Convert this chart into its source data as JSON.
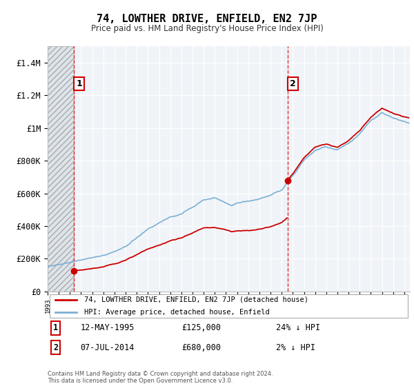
{
  "title": "74, LOWTHER DRIVE, ENFIELD, EN2 7JP",
  "subtitle": "Price paid vs. HM Land Registry's House Price Index (HPI)",
  "ylim": [
    0,
    1500000
  ],
  "yticks": [
    0,
    200000,
    400000,
    600000,
    800000,
    1000000,
    1200000,
    1400000
  ],
  "ytick_labels": [
    "£0",
    "£200K",
    "£400K",
    "£600K",
    "£800K",
    "£1M",
    "£1.2M",
    "£1.4M"
  ],
  "sale1_date": "12-MAY-1995",
  "sale1_price": 125000,
  "sale1_year": 1995.36,
  "sale1_pct": "24%",
  "sale2_date": "07-JUL-2014",
  "sale2_price": 680000,
  "sale2_year": 2014.52,
  "sale2_pct": "2%",
  "legend_line1": "74, LOWTHER DRIVE, ENFIELD, EN2 7JP (detached house)",
  "legend_line2": "HPI: Average price, detached house, Enfield",
  "footer": "Contains HM Land Registry data © Crown copyright and database right 2024.\nThis data is licensed under the Open Government Licence v3.0.",
  "hpi_color": "#7bafd4",
  "price_color": "#cc0000",
  "xlim_start": 1993,
  "xlim_end": 2025.5
}
